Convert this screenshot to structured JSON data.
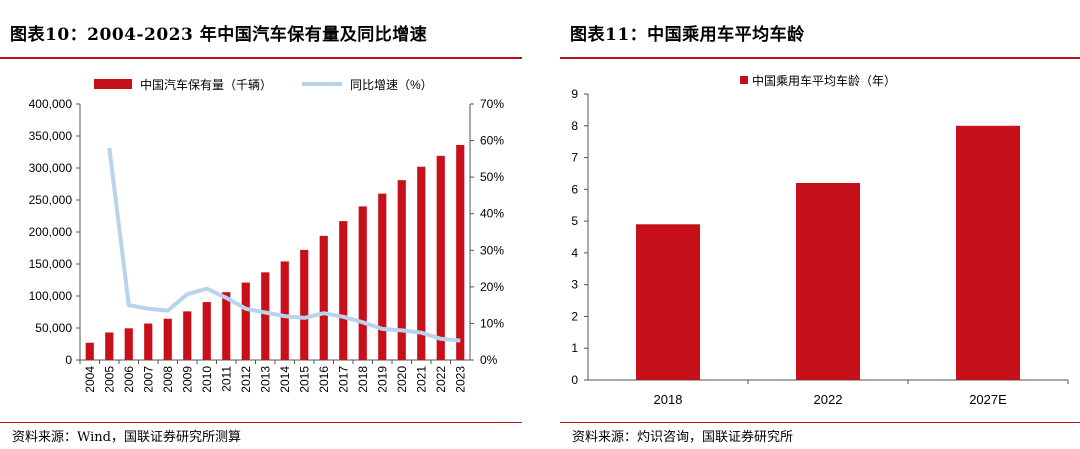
{
  "chart_data": [
    {
      "type": "bar",
      "title": "图表10：2004-2023 年中国汽车保有量及同比增速",
      "source": "资料来源：Wind，国联证券研究所测算",
      "categories": [
        "2004",
        "2005",
        "2006",
        "2007",
        "2008",
        "2009",
        "2010",
        "2011",
        "2012",
        "2013",
        "2014",
        "2015",
        "2016",
        "2017",
        "2018",
        "2019",
        "2020",
        "2021",
        "2022",
        "2023"
      ],
      "series": [
        {
          "name": "中国汽车保有量（千辆）",
          "type": "bar",
          "axis": "left",
          "color": "#c8101a",
          "values": [
            27000,
            43000,
            49500,
            57000,
            64500,
            76000,
            90500,
            106000,
            121000,
            137000,
            154000,
            172000,
            194000,
            217000,
            240000,
            260000,
            281000,
            302000,
            319000,
            336000
          ]
        },
        {
          "name": "同比增速（%）",
          "type": "line",
          "axis": "right",
          "color": "#b9d4ea",
          "values": [
            null,
            58.0,
            15.0,
            14.0,
            13.5,
            18.0,
            19.5,
            17.0,
            14.0,
            13.0,
            12.0,
            11.5,
            12.8,
            11.8,
            10.3,
            8.5,
            8.1,
            7.5,
            5.8,
            5.3
          ]
        }
      ],
      "ylim_left": [
        0,
        400000
      ],
      "yticks_left": [
        "0",
        "50,000",
        "100,000",
        "150,000",
        "200,000",
        "250,000",
        "300,000",
        "350,000",
        "400,000"
      ],
      "ylim_right": [
        0,
        70
      ],
      "yticks_right": [
        "0%",
        "10%",
        "20%",
        "30%",
        "40%",
        "50%",
        "60%",
        "70%"
      ],
      "legend": "top",
      "grid": false
    },
    {
      "type": "bar",
      "title": "图表11：中国乘用车平均车龄",
      "source": "资料来源：灼识咨询，国联证券研究所",
      "categories": [
        "2018",
        "2022",
        "2027E"
      ],
      "series": [
        {
          "name": "中国乘用车平均车龄（年）",
          "color": "#c8101a",
          "values": [
            4.9,
            6.2,
            8.0
          ]
        }
      ],
      "ylim": [
        0,
        9
      ],
      "yticks": [
        "0",
        "1",
        "2",
        "3",
        "4",
        "5",
        "6",
        "7",
        "8",
        "9"
      ],
      "legend": "top",
      "grid": false
    }
  ]
}
